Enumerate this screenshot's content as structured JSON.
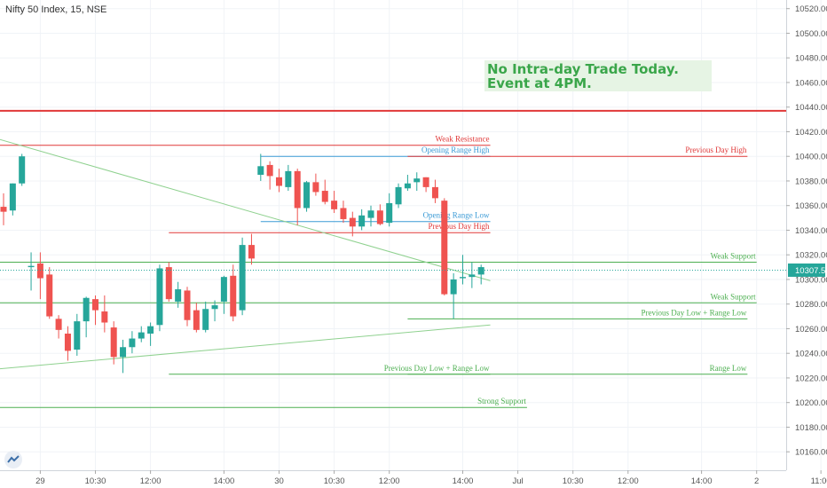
{
  "header": {
    "symbol": "Nifty 50 Index, 15, NSE"
  },
  "note": {
    "line1": "No Intra-day Trade Today.",
    "line2": "Event at 4PM."
  },
  "colors": {
    "up": "#26a69a",
    "down": "#ef5350",
    "resistance": "#e03838",
    "support": "#4caf50",
    "range": "#3b9bd6",
    "trend": "#8fd18f",
    "grid": "#f0f3f7",
    "axis_text": "#555555"
  },
  "chart_data": {
    "type": "candlestick",
    "title": "Nifty 50 Index, 15, NSE",
    "y_axis": {
      "ylim": [
        10145,
        10527
      ],
      "ticks": [
        10520,
        10500,
        10480,
        10460,
        10440,
        10420,
        10400,
        10380,
        10360,
        10340,
        10320,
        10300,
        10280,
        10260,
        10240,
        10220,
        10200,
        10180,
        10160
      ]
    },
    "x_axis": {
      "ticks": [
        {
          "label": "29",
          "bar": 4
        },
        {
          "label": "10:30",
          "bar": 10
        },
        {
          "label": "12:00",
          "bar": 16
        },
        {
          "label": "14:00",
          "bar": 24
        },
        {
          "label": "30",
          "bar": 30
        },
        {
          "label": "10:30",
          "bar": 36
        },
        {
          "label": "12:00",
          "bar": 42
        },
        {
          "label": "14:00",
          "bar": 50
        },
        {
          "label": "Jul",
          "bar": 56
        },
        {
          "label": "10:30",
          "bar": 62
        },
        {
          "label": "12:00",
          "bar": 68
        },
        {
          "label": "14:00",
          "bar": 76
        },
        {
          "label": "2",
          "bar": 82
        },
        {
          "label": "11:00",
          "bar": 89
        }
      ]
    },
    "last_price": "10307.55",
    "last_price_value": 10307.55,
    "candles": [
      {
        "o": 10359,
        "h": 10370,
        "l": 10344,
        "c": 10355
      },
      {
        "o": 10356,
        "h": 10378,
        "l": 10352,
        "c": 10378
      },
      {
        "o": 10378,
        "h": 10402,
        "l": 10376,
        "c": 10400
      },
      {
        "o": 10310,
        "h": 10322,
        "l": 10291,
        "c": 10311
      },
      {
        "o": 10313,
        "h": 10322,
        "l": 10284,
        "c": 10301
      },
      {
        "o": 10304,
        "h": 10310,
        "l": 10268,
        "c": 10270
      },
      {
        "o": 10268,
        "h": 10271,
        "l": 10252,
        "c": 10259
      },
      {
        "o": 10256,
        "h": 10262,
        "l": 10234,
        "c": 10242
      },
      {
        "o": 10243,
        "h": 10272,
        "l": 10238,
        "c": 10266
      },
      {
        "o": 10266,
        "h": 10286,
        "l": 10253,
        "c": 10285
      },
      {
        "o": 10284,
        "h": 10287,
        "l": 10263,
        "c": 10275
      },
      {
        "o": 10274,
        "h": 10287,
        "l": 10257,
        "c": 10265
      },
      {
        "o": 10261,
        "h": 10266,
        "l": 10231,
        "c": 10237
      },
      {
        "o": 10237,
        "h": 10251,
        "l": 10224,
        "c": 10245
      },
      {
        "o": 10245,
        "h": 10258,
        "l": 10240,
        "c": 10252
      },
      {
        "o": 10252,
        "h": 10262,
        "l": 10249,
        "c": 10257
      },
      {
        "o": 10256,
        "h": 10265,
        "l": 10246,
        "c": 10262
      },
      {
        "o": 10263,
        "h": 10312,
        "l": 10258,
        "c": 10309
      },
      {
        "o": 10310,
        "h": 10314,
        "l": 10282,
        "c": 10284
      },
      {
        "o": 10282,
        "h": 10298,
        "l": 10277,
        "c": 10292
      },
      {
        "o": 10291,
        "h": 10294,
        "l": 10262,
        "c": 10267
      },
      {
        "o": 10275,
        "h": 10281,
        "l": 10257,
        "c": 10259
      },
      {
        "o": 10259,
        "h": 10282,
        "l": 10257,
        "c": 10276
      },
      {
        "o": 10276,
        "h": 10283,
        "l": 10266,
        "c": 10279
      },
      {
        "o": 10282,
        "h": 10303,
        "l": 10272,
        "c": 10302
      },
      {
        "o": 10303,
        "h": 10312,
        "l": 10266,
        "c": 10270
      },
      {
        "o": 10275,
        "h": 10334,
        "l": 10271,
        "c": 10328
      },
      {
        "o": 10328,
        "h": 10337,
        "l": 10312,
        "c": 10317
      },
      {
        "o": 10385,
        "h": 10402,
        "l": 10380,
        "c": 10392
      },
      {
        "o": 10393,
        "h": 10396,
        "l": 10373,
        "c": 10384
      },
      {
        "o": 10383,
        "h": 10390,
        "l": 10371,
        "c": 10376
      },
      {
        "o": 10375,
        "h": 10393,
        "l": 10372,
        "c": 10388
      },
      {
        "o": 10388,
        "h": 10390,
        "l": 10344,
        "c": 10358
      },
      {
        "o": 10358,
        "h": 10380,
        "l": 10355,
        "c": 10379
      },
      {
        "o": 10379,
        "h": 10386,
        "l": 10368,
        "c": 10371
      },
      {
        "o": 10372,
        "h": 10381,
        "l": 10361,
        "c": 10363
      },
      {
        "o": 10364,
        "h": 10372,
        "l": 10354,
        "c": 10357
      },
      {
        "o": 10358,
        "h": 10364,
        "l": 10346,
        "c": 10349
      },
      {
        "o": 10350,
        "h": 10355,
        "l": 10335,
        "c": 10343
      },
      {
        "o": 10343,
        "h": 10357,
        "l": 10340,
        "c": 10352
      },
      {
        "o": 10350,
        "h": 10360,
        "l": 10343,
        "c": 10356
      },
      {
        "o": 10356,
        "h": 10361,
        "l": 10344,
        "c": 10345
      },
      {
        "o": 10346,
        "h": 10370,
        "l": 10343,
        "c": 10362
      },
      {
        "o": 10361,
        "h": 10378,
        "l": 10358,
        "c": 10375
      },
      {
        "o": 10374,
        "h": 10385,
        "l": 10372,
        "c": 10378
      },
      {
        "o": 10379,
        "h": 10387,
        "l": 10372,
        "c": 10382
      },
      {
        "o": 10383,
        "h": 10383,
        "l": 10371,
        "c": 10375
      },
      {
        "o": 10375,
        "h": 10381,
        "l": 10362,
        "c": 10366
      },
      {
        "o": 10364,
        "h": 10366,
        "l": 10287,
        "c": 10288
      },
      {
        "o": 10288,
        "h": 10305,
        "l": 10268,
        "c": 10300
      },
      {
        "o": 10301,
        "h": 10320,
        "l": 10296,
        "c": 10302
      },
      {
        "o": 10302,
        "h": 10314,
        "l": 10293,
        "c": 10304
      },
      {
        "o": 10304,
        "h": 10312,
        "l": 10296,
        "c": 10310
      }
    ],
    "levels": [
      {
        "label": "",
        "value": 10437,
        "style": "resistance",
        "x1": -1,
        "x2": 99,
        "thick": true
      },
      {
        "label": "Weak Resistance",
        "value": 10409,
        "style": "resistance",
        "x1": -1,
        "x2": 53
      },
      {
        "label": "Opening Range High",
        "value": 10400,
        "style": "range",
        "x1": 28,
        "x2": 53
      },
      {
        "label": "Previous Day High",
        "value": 10400,
        "style": "resistance",
        "x1": 44,
        "x2": 81
      },
      {
        "label": "Opening Range Low",
        "value": 10347,
        "style": "range",
        "x1": 28,
        "x2": 53
      },
      {
        "label": "Previous Day High",
        "value": 10338,
        "style": "resistance",
        "x1": 18,
        "x2": 53
      },
      {
        "label": "Weak Support",
        "value": 10314,
        "style": "support",
        "x1": -1,
        "x2": 82
      },
      {
        "label": "Weak Support",
        "value": 10281,
        "style": "support",
        "x1": -1,
        "x2": 82
      },
      {
        "label": "Previous Day Low + Range Low",
        "value": 10268,
        "style": "support",
        "x1": 44,
        "x2": 81
      },
      {
        "label": "Previous Day Low + Range Low",
        "value": 10223,
        "style": "support",
        "x1": 18,
        "x2": 53
      },
      {
        "label": "Range Low",
        "value": 10223,
        "style": "support",
        "x1": 44,
        "x2": 81
      },
      {
        "label": "Strong Support",
        "value": 10196,
        "style": "support",
        "x1": -1,
        "x2": 57
      }
    ],
    "trendlines": [
      {
        "x1": -1,
        "y1": 10415,
        "x2": 53,
        "y2": 10299
      },
      {
        "x1": -1,
        "y1": 10227,
        "x2": 53,
        "y2": 10263
      }
    ]
  }
}
